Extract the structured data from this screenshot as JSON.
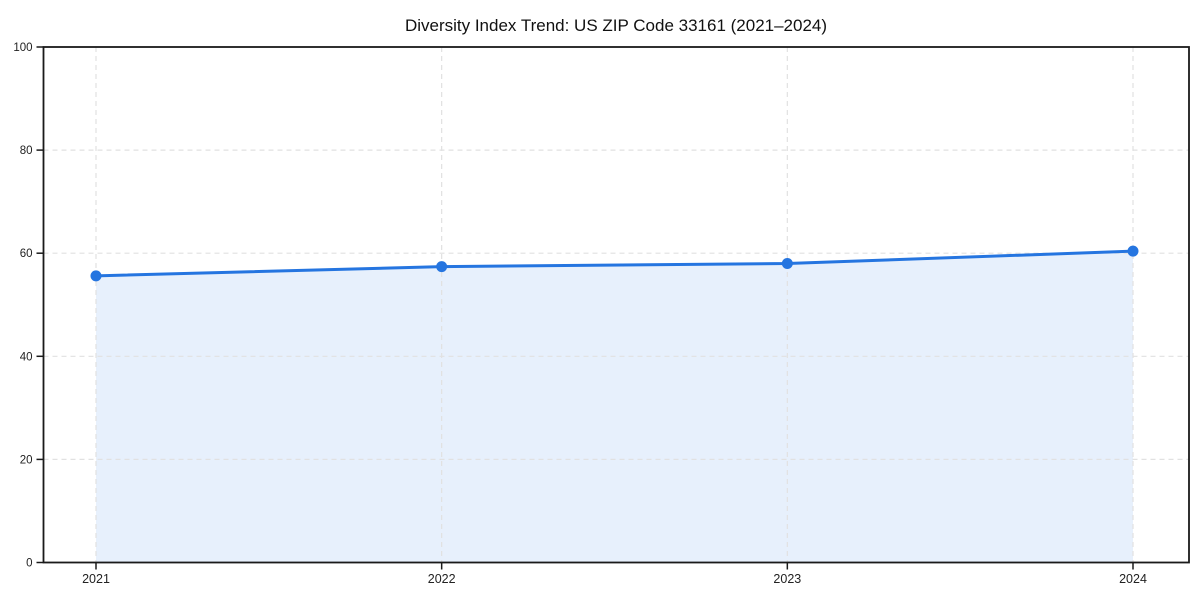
{
  "page": {
    "background": "#ffffff"
  },
  "chart_data": {
    "type": "area",
    "title": "Diversity Index Trend: US ZIP Code 33161 (2021–2024)",
    "categories": [
      "2021",
      "2022",
      "2023",
      "2024"
    ],
    "x": [
      2021,
      2022,
      2023,
      2024
    ],
    "series": [
      {
        "name": "Diversity Index",
        "values": [
          55.6,
          57.4,
          58.0,
          60.4
        ]
      }
    ],
    "xlabel": "",
    "ylabel": "",
    "ylim": [
      0,
      100
    ],
    "yticks": [
      0,
      20,
      40,
      60,
      80,
      100
    ],
    "xticks": [
      "2021",
      "2022",
      "2023",
      "2024"
    ],
    "grid": true,
    "grid_style": "dashed",
    "legend_position": "none",
    "marker": "circle",
    "colors": {
      "line": "#2575e0",
      "marker": "#2575e0",
      "fill": "#2575e0",
      "fill_opacity": 0.11,
      "grid": "#e1e1e1",
      "axis": "#1a1a1a",
      "tick_label": "#222222",
      "title": "#111111"
    }
  }
}
